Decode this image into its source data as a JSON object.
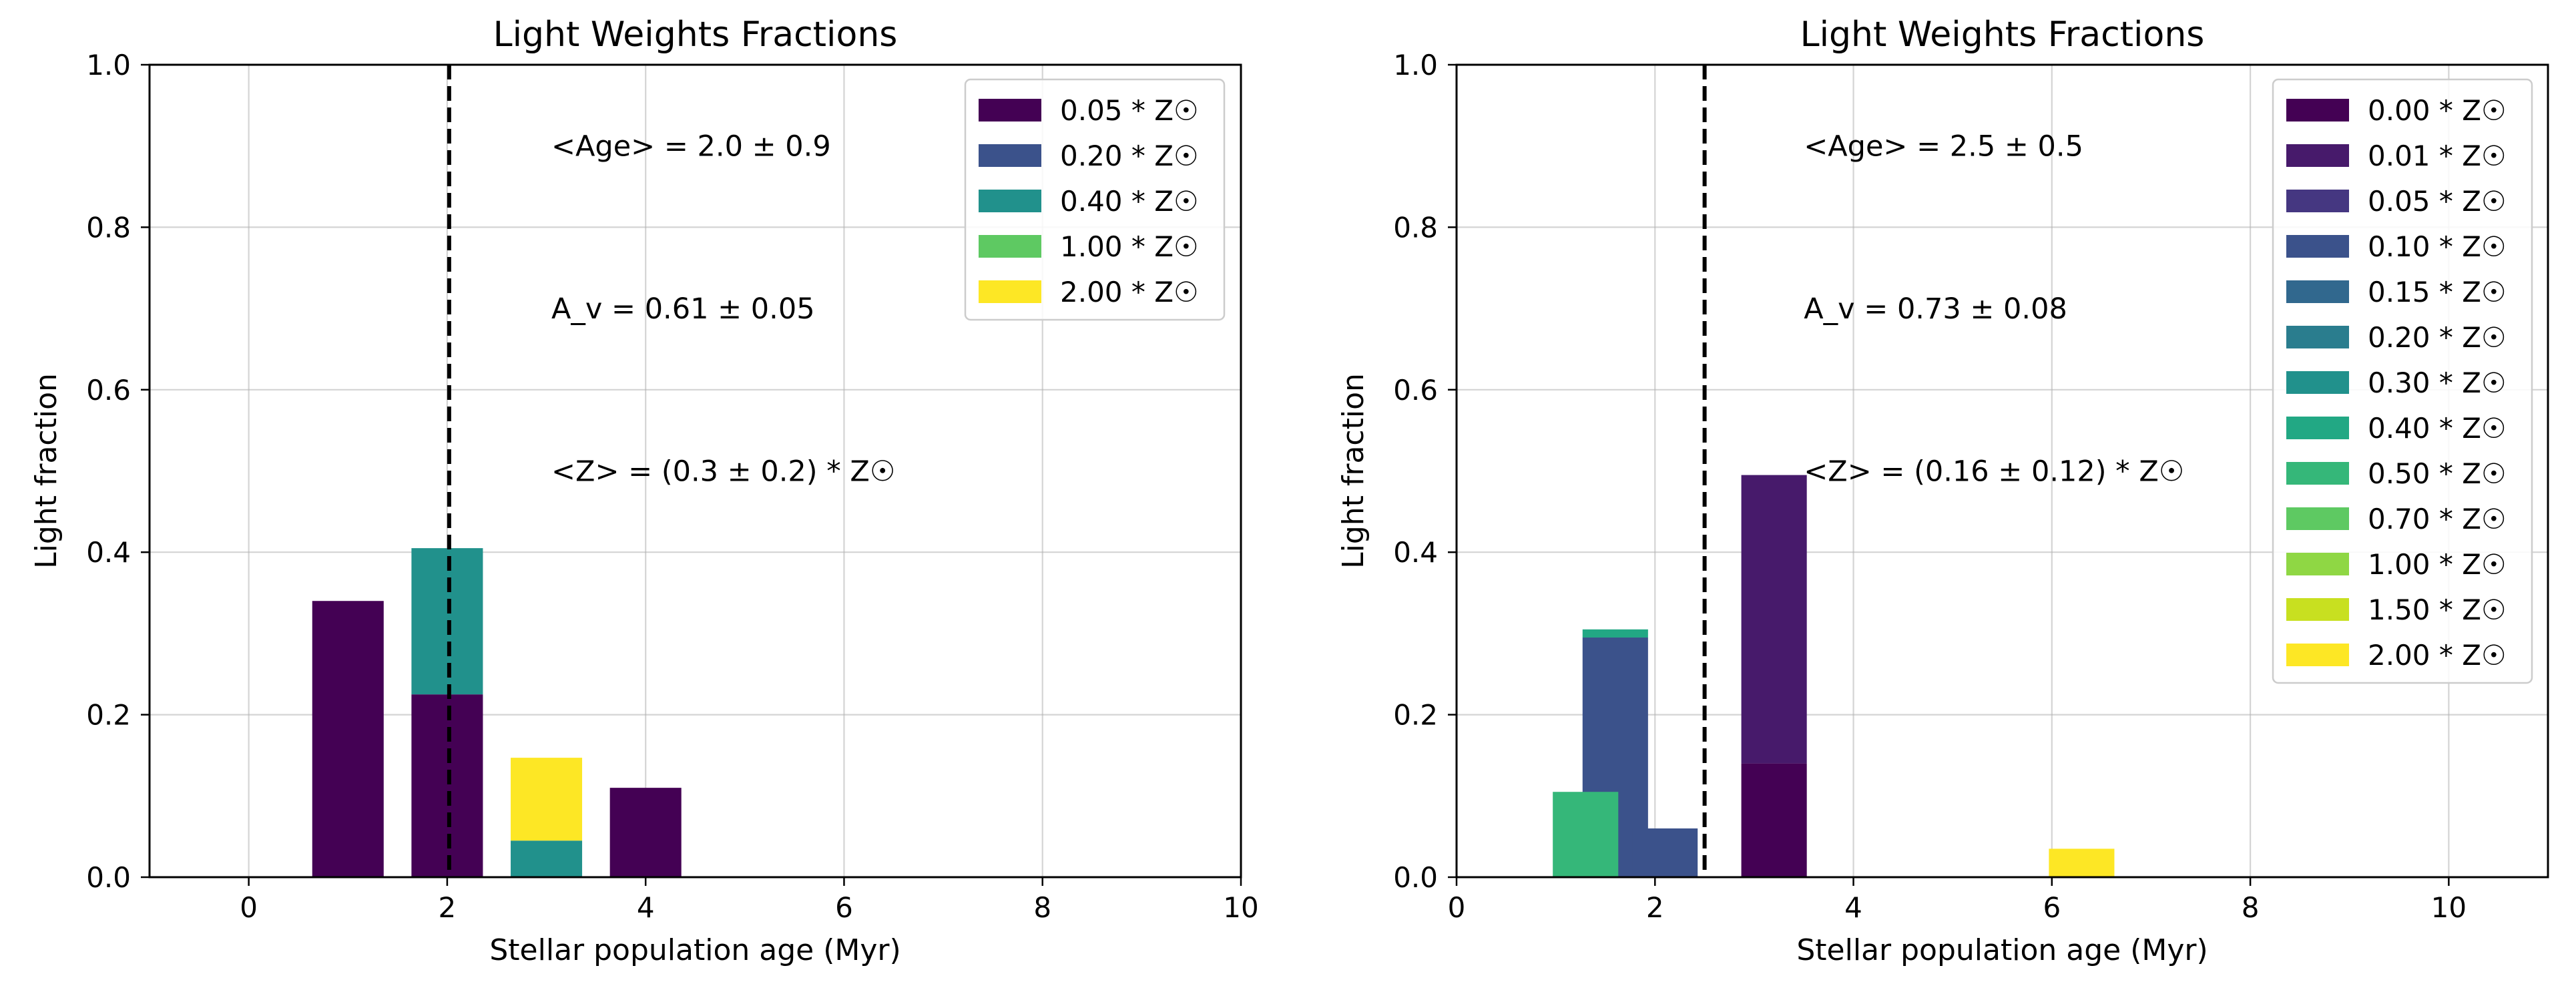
{
  "chart_data": [
    {
      "type": "bar",
      "stacked": true,
      "title": "Light Weights Fractions",
      "xlabel": "Stellar population age (Myr)",
      "ylabel": "Light fraction",
      "xlim": [
        -1,
        10
      ],
      "ylim": [
        0,
        1
      ],
      "xticks": [
        0,
        2,
        4,
        6,
        8,
        10
      ],
      "yticks": [
        0.0,
        0.2,
        0.4,
        0.6,
        0.8,
        1.0
      ],
      "grid": true,
      "legend_position": "top-right",
      "mean_age": 2.02,
      "annotations": [
        "<Age> = 2.0 ± 0.9",
        "A_v = 0.61 ± 0.05",
        "<Z> = (0.3 ± 0.2) * Z☉"
      ],
      "series": [
        {
          "name": "0.05 * Z☉",
          "color": "#440154",
          "points": [
            {
              "x": 1.0,
              "width": 0.72,
              "y": 0.34
            },
            {
              "x": 2.0,
              "width": 0.72,
              "y": 0.225
            },
            {
              "x": 4.0,
              "width": 0.72,
              "y": 0.11
            }
          ]
        },
        {
          "name": "0.20 * Z☉",
          "color": "#3b528b",
          "points": []
        },
        {
          "name": "0.40 * Z☉",
          "color": "#21918c",
          "points": [
            {
              "x": 2.0,
              "width": 0.72,
              "y": 0.18
            },
            {
              "x": 3.0,
              "width": 0.72,
              "y": 0.045
            }
          ]
        },
        {
          "name": "1.00 * Z☉",
          "color": "#5ec962",
          "points": []
        },
        {
          "name": "2.00 * Z☉",
          "color": "#fde725",
          "points": [
            {
              "x": 3.0,
              "width": 0.72,
              "y": 0.102
            }
          ]
        }
      ]
    },
    {
      "type": "bar",
      "stacked": true,
      "title": "Light Weights Fractions",
      "xlabel": "Stellar population age (Myr)",
      "ylabel": "Light fraction",
      "xlim": [
        0,
        11
      ],
      "ylim": [
        0,
        1
      ],
      "xticks": [
        0,
        2,
        4,
        6,
        8,
        10
      ],
      "yticks": [
        0.0,
        0.2,
        0.4,
        0.6,
        0.8,
        1.0
      ],
      "grid": true,
      "legend_position": "top-right",
      "mean_age": 2.5,
      "annotations": [
        "<Age> = 2.5 ± 0.5",
        "A_v = 0.73 ± 0.08",
        "<Z> = (0.16 ± 0.12) * Z☉"
      ],
      "series": [
        {
          "name": "0.00 * Z☉",
          "color": "#440154",
          "points": [
            {
              "x": 3.2,
              "width": 0.66,
              "y": 0.14
            }
          ]
        },
        {
          "name": "0.01 * Z☉",
          "color": "#471a6b",
          "points": [
            {
              "x": 3.2,
              "width": 0.66,
              "y": 0.355
            }
          ]
        },
        {
          "name": "0.05 * Z☉",
          "color": "#453781",
          "points": []
        },
        {
          "name": "0.10 * Z☉",
          "color": "#3b528b",
          "points": [
            {
              "x": 1.6,
              "width": 0.66,
              "y": 0.295
            },
            {
              "x": 2.1,
              "width": 0.66,
              "y": 0.06
            }
          ]
        },
        {
          "name": "0.15 * Z☉",
          "color": "#31688e",
          "points": []
        },
        {
          "name": "0.20 * Z☉",
          "color": "#2a7d8e",
          "points": []
        },
        {
          "name": "0.30 * Z☉",
          "color": "#21918c",
          "points": []
        },
        {
          "name": "0.40 * Z☉",
          "color": "#22a884",
          "points": [
            {
              "x": 1.6,
              "width": 0.66,
              "y": 0.01
            }
          ]
        },
        {
          "name": "0.50 * Z☉",
          "color": "#35b779",
          "points": [
            {
              "x": 1.3,
              "width": 0.66,
              "y": 0.105
            }
          ]
        },
        {
          "name": "0.70 * Z☉",
          "color": "#5ec962",
          "points": []
        },
        {
          "name": "1.00 * Z☉",
          "color": "#8fd744",
          "points": []
        },
        {
          "name": "1.50 * Z☉",
          "color": "#c8e020",
          "points": []
        },
        {
          "name": "2.00 * Z☉",
          "color": "#fde725",
          "points": [
            {
              "x": 6.3,
              "width": 0.66,
              "y": 0.035
            }
          ]
        }
      ]
    }
  ]
}
